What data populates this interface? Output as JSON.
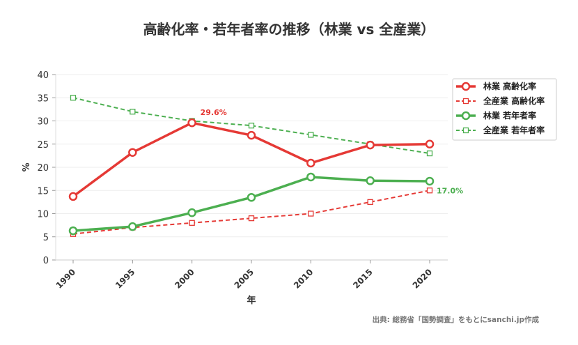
{
  "chart_data": {
    "type": "line",
    "title": "高齢化率・若年者率の推移（林業 vs 全産業）",
    "xlabel": "年",
    "ylabel": "%",
    "ylim": [
      0,
      40
    ],
    "yticks": [
      0,
      5,
      10,
      15,
      20,
      25,
      30,
      35,
      40
    ],
    "x": [
      1990,
      1995,
      2000,
      2005,
      2010,
      2015,
      2020
    ],
    "grid": true,
    "legend": "top-right",
    "series": [
      {
        "name": "林業 高齢化率",
        "values": [
          13.7,
          23.2,
          29.6,
          26.9,
          20.9,
          24.8,
          25.0
        ],
        "color": "#e53935",
        "style": "solid",
        "marker": "circle"
      },
      {
        "name": "全産業 高齢化率",
        "values": [
          5.6,
          7.0,
          8.0,
          9.0,
          10.0,
          12.5,
          15.0
        ],
        "color": "#e53935",
        "style": "dashed",
        "marker": "square"
      },
      {
        "name": "林業 若年者率",
        "values": [
          6.3,
          7.2,
          10.2,
          13.5,
          17.9,
          17.1,
          17.0
        ],
        "color": "#4caf50",
        "style": "solid",
        "marker": "circle"
      },
      {
        "name": "全産業 若年者率",
        "values": [
          35,
          32,
          30,
          29,
          27,
          25,
          23
        ],
        "color": "#4caf50",
        "style": "dashed",
        "marker": "square"
      }
    ],
    "annotations": [
      {
        "text": "29.6%",
        "series": 0,
        "x": 2000,
        "color": "#e53935"
      },
      {
        "text": "17.0%",
        "series": 2,
        "x": 2020,
        "color": "#4caf50"
      }
    ]
  },
  "source": "出典: 総務省「国勢調査」をもとにsanchi.jp作成"
}
